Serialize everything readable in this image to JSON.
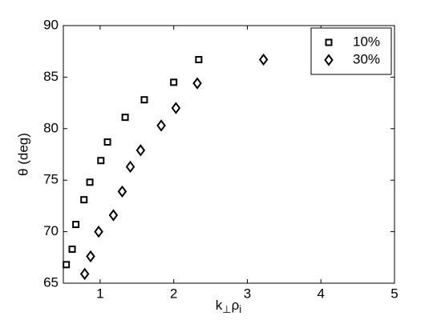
{
  "chart_data": {
    "type": "scatter",
    "x_label": [
      {
        "text": "k",
        "sub": "⊥"
      },
      {
        "text": "ρ",
        "sub": "i"
      }
    ],
    "y_label": "θ (deg)",
    "xlim": [
      0.5,
      5
    ],
    "xticks": [
      1,
      2,
      3,
      4,
      5
    ],
    "ylim": [
      65,
      90
    ],
    "yticks": [
      65,
      70,
      75,
      80,
      85,
      90
    ],
    "legend": "top-right",
    "series": [
      {
        "name": "10%",
        "marker": "square",
        "color": "#000000",
        "x": [
          0.54,
          0.62,
          0.67,
          0.78,
          0.86,
          1.01,
          1.1,
          1.34,
          1.6,
          2.0,
          2.34
        ],
        "values": [
          66.8,
          68.3,
          70.7,
          73.1,
          74.8,
          76.9,
          78.7,
          81.1,
          82.8,
          84.5,
          86.7
        ]
      },
      {
        "name": "30%",
        "marker": "diamond",
        "color": "#000000",
        "x": [
          0.79,
          0.87,
          0.98,
          1.18,
          1.3,
          1.41,
          1.55,
          1.83,
          2.03,
          2.32,
          3.22
        ],
        "values": [
          65.9,
          67.6,
          70.0,
          71.6,
          73.9,
          76.3,
          77.9,
          80.3,
          82.0,
          84.4,
          86.7
        ]
      }
    ]
  }
}
